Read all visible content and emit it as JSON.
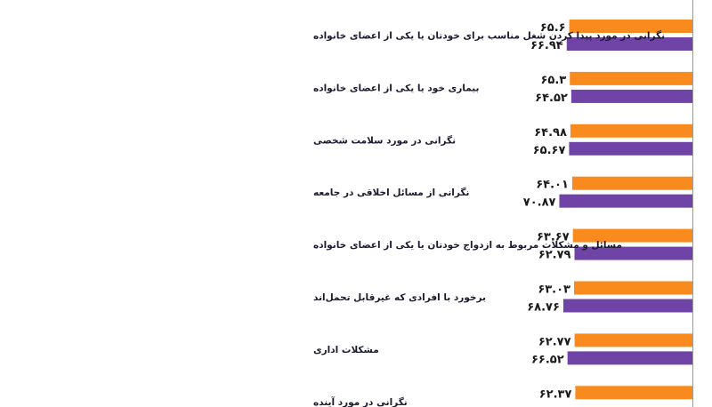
{
  "colors": {
    "series_a": "#F98B1E",
    "series_b": "#6F44A6",
    "axis": "#9a9a9a",
    "background": "#ffffff"
  },
  "chart_data": {
    "type": "bar",
    "orientation": "horizontal",
    "direction": "rtl",
    "categories": [
      "نگرانی در مورد پیدا کردن شغل مناسب برای خودتان یا یکی از اعضای خانواده",
      "بیماری خود یا یکی از اعضای خانواده",
      "نگرانی در مورد سلامت شخصی",
      "نگرانی از مسائل اخلاقی در جامعه",
      "مسائل و مشکلات مربوط به ازدواج خودتان یا یکی از اعضای خانواده",
      "برخورد با افرادی که غیرقابل تحمل‌اند",
      "مشکلات اداری",
      "نگرانی در مورد آینده"
    ],
    "series": [
      {
        "values": [
          65.6,
          65.3,
          64.98,
          64.01,
          63.67,
          63.03,
          62.77,
          62.37
        ],
        "labels": [
          "۶۵.۶",
          "۶۵.۳",
          "۶۴.۹۸",
          "۶۴.۰۱",
          "۶۳.۶۷",
          "۶۳.۰۳",
          "۶۲.۷۷",
          "۶۲.۳۷"
        ]
      },
      {
        "values": [
          66.94,
          64.52,
          65.67,
          70.87,
          62.79,
          68.76,
          66.52,
          null
        ],
        "labels": [
          "۶۶.۹۴",
          "۶۴.۵۲",
          "۶۵.۶۷",
          "۷۰.۸۷",
          "۶۲.۷۹",
          "۶۸.۷۶",
          "۶۶.۵۲",
          ""
        ]
      }
    ],
    "title": "",
    "xlabel": "",
    "ylabel": "",
    "grid": false,
    "legend": "none"
  }
}
